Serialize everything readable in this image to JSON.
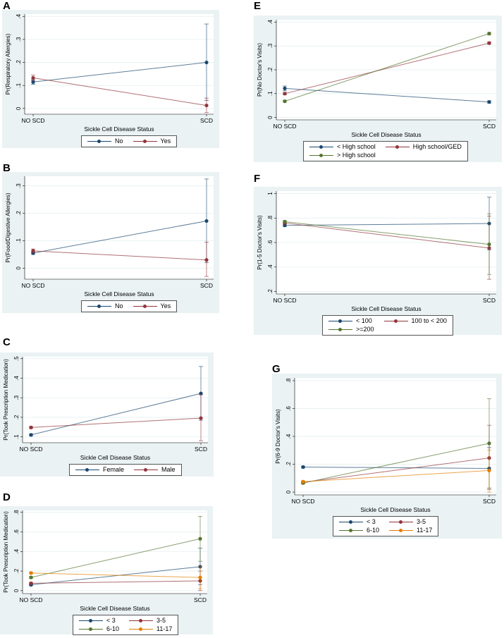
{
  "colors": {
    "blue": "#1a476f",
    "red": "#90353b",
    "green": "#55752f",
    "orange": "#e37e00"
  },
  "chart_data": [
    {
      "id": "A",
      "type": "line",
      "categories": [
        "NO SCD",
        "SCD"
      ],
      "xlabel": "Sickle Cell Disease Status",
      "ylabel": "Pr(Respiratory Allergies)",
      "ylim": [
        -0.025,
        0.41
      ],
      "yticks": [
        0,
        0.1,
        0.2,
        0.3,
        0.4
      ],
      "ytick_labels": [
        "0",
        ".1",
        ".2",
        ".3",
        ".4"
      ],
      "legend_cols": 2,
      "series": [
        {
          "name": "No",
          "color": "blue",
          "values": [
            0.115,
            0.2
          ],
          "ci": [
            [
              0.105,
              0.125
            ],
            [
              0.035,
              0.367
            ]
          ]
        },
        {
          "name": "Yes",
          "color": "red",
          "values": [
            0.133,
            0.013
          ],
          "ci": [
            [
              0.122,
              0.145
            ],
            [
              -0.018,
              0.045
            ]
          ]
        }
      ]
    },
    {
      "id": "B",
      "type": "line",
      "categories": [
        "NO SCD",
        "SCD"
      ],
      "xlabel": "Sickle Cell Disease Status",
      "ylabel": "Pr(Food/Digestive Allergies)",
      "ylim": [
        -0.04,
        0.335
      ],
      "yticks": [
        0,
        0.1,
        0.2,
        0.3
      ],
      "ytick_labels": [
        "0",
        ".1",
        ".2",
        ".3"
      ],
      "legend_cols": 2,
      "series": [
        {
          "name": "No",
          "color": "blue",
          "values": [
            0.055,
            0.172
          ],
          "ci": [
            [
              0.05,
              0.06
            ],
            [
              0.02,
              0.325
            ]
          ]
        },
        {
          "name": "Yes",
          "color": "red",
          "values": [
            0.063,
            0.03
          ],
          "ci": [
            [
              0.057,
              0.07
            ],
            [
              -0.03,
              0.095
            ]
          ]
        }
      ]
    },
    {
      "id": "C",
      "type": "line",
      "categories": [
        "NO SCD",
        "SCD"
      ],
      "xlabel": "Sickle Cell Disease Status",
      "ylabel": "Pr(Took Prescription Medication)",
      "ylim": [
        0.07,
        0.51
      ],
      "yticks": [
        0.1,
        0.2,
        0.3,
        0.4,
        0.5
      ],
      "ytick_labels": [
        ".1",
        ".2",
        ".3",
        ".4",
        ".5"
      ],
      "legend_cols": 2,
      "series": [
        {
          "name": "Female",
          "color": "blue",
          "values": [
            0.11,
            0.322
          ],
          "ci": [
            [
              0.105,
              0.115
            ],
            [
              0.185,
              0.46
            ]
          ]
        },
        {
          "name": "Male",
          "color": "red",
          "values": [
            0.148,
            0.196
          ],
          "ci": [
            [
              0.143,
              0.153
            ],
            [
              0.08,
              0.315
            ]
          ]
        }
      ]
    },
    {
      "id": "D",
      "type": "line",
      "categories": [
        "NO SCD",
        "SCD"
      ],
      "xlabel": "Sickle Cell Disease Status",
      "ylabel": "Pr(Took Prescription Medication)",
      "ylim": [
        -0.03,
        0.82
      ],
      "yticks": [
        0,
        0.2,
        0.4,
        0.6,
        0.8
      ],
      "ytick_labels": [
        "0",
        ".2",
        ".4",
        ".6",
        ".8"
      ],
      "legend_cols": 2,
      "series": [
        {
          "name": "< 3",
          "color": "blue",
          "values": [
            0.06,
            0.245
          ],
          "ci": [
            [
              0.05,
              0.07
            ],
            [
              0.06,
              0.435
            ]
          ]
        },
        {
          "name": "3-5",
          "color": "red",
          "values": [
            0.075,
            0.1
          ],
          "ci": [
            [
              0.065,
              0.085
            ],
            [
              0.0,
              0.2
            ]
          ]
        },
        {
          "name": "6-10",
          "color": "green",
          "values": [
            0.135,
            0.53
          ],
          "ci": [
            [
              0.125,
              0.145
            ],
            [
              0.3,
              0.76
            ]
          ]
        },
        {
          "name": "11-17",
          "color": "orange",
          "values": [
            0.18,
            0.135
          ],
          "ci": [
            [
              0.17,
              0.19
            ],
            [
              0.02,
              0.25
            ]
          ]
        }
      ]
    },
    {
      "id": "E",
      "type": "line",
      "categories": [
        "NO SCD",
        "SCD"
      ],
      "xlabel": "Sickle Cell Disease Status",
      "ylabel": "Pr(No Doctor's Visits)",
      "ylim": [
        -0.01,
        0.41
      ],
      "yticks": [
        0,
        0.1,
        0.2,
        0.3,
        0.4
      ],
      "ytick_labels": [
        "0",
        ".1",
        ".2",
        ".3",
        ".4"
      ],
      "legend_cols": 2,
      "series": [
        {
          "name": "< High school",
          "color": "blue",
          "values": [
            0.122,
            0.065
          ],
          "ci": [
            [
              0.112,
              0.132
            ],
            [
              0.06,
              0.07
            ]
          ]
        },
        {
          "name": "High school/GED",
          "color": "red",
          "values": [
            0.1,
            0.312
          ],
          "ci": [
            [
              0.095,
              0.105
            ],
            [
              0.307,
              0.317
            ]
          ]
        },
        {
          "name": "> High school",
          "color": "green",
          "values": [
            0.068,
            0.352
          ],
          "ci": [
            [
              0.064,
              0.072
            ],
            [
              0.347,
              0.357
            ]
          ]
        }
      ]
    },
    {
      "id": "F",
      "type": "line",
      "categories": [
        "NO SCD",
        "SCD"
      ],
      "xlabel": "Sickle Cell Disease Status",
      "ylabel": "Pr(1-5 Doctor's Visits)",
      "ylim": [
        0.18,
        1.02
      ],
      "yticks": [
        0.2,
        0.4,
        0.6,
        0.8,
        1
      ],
      "ytick_labels": [
        ".2",
        ".4",
        ".6",
        ".8",
        "1"
      ],
      "legend_cols": 2,
      "series": [
        {
          "name": "< 100",
          "color": "blue",
          "values": [
            0.74,
            0.755
          ],
          "ci": [
            [
              0.73,
              0.75
            ],
            [
              0.54,
              0.97
            ]
          ]
        },
        {
          "name": "100 to < 200",
          "color": "red",
          "values": [
            0.76,
            0.555
          ],
          "ci": [
            [
              0.75,
              0.77
            ],
            [
              0.3,
              0.815
            ]
          ]
        },
        {
          "name": ">=200",
          "color": "green",
          "values": [
            0.77,
            0.585
          ],
          "ci": [
            [
              0.76,
              0.78
            ],
            [
              0.34,
              0.835
            ]
          ]
        }
      ]
    },
    {
      "id": "G",
      "type": "line",
      "categories": [
        "NO SCD",
        "SCD"
      ],
      "xlabel": "Sickle Cell Disease Status",
      "ylabel": "Pr(6-9 Doctor's Visits)",
      "ylim": [
        -0.02,
        0.82
      ],
      "yticks": [
        0,
        0.2,
        0.4,
        0.6,
        0.8
      ],
      "ytick_labels": [
        "0",
        ".2",
        ".4",
        ".6",
        ".8"
      ],
      "legend_cols": 2,
      "series": [
        {
          "name": "< 3",
          "color": "blue",
          "values": [
            0.18,
            0.17
          ],
          "ci": [
            [
              0.173,
              0.187
            ],
            [
              0.02,
              0.32
            ]
          ]
        },
        {
          "name": "3-5",
          "color": "red",
          "values": [
            0.07,
            0.245
          ],
          "ci": [
            [
              0.064,
              0.076
            ],
            [
              0.02,
              0.48
            ]
          ]
        },
        {
          "name": "6-10",
          "color": "green",
          "values": [
            0.065,
            0.35
          ],
          "ci": [
            [
              0.059,
              0.071
            ],
            [
              0.03,
              0.67
            ]
          ]
        },
        {
          "name": "11-17",
          "color": "orange",
          "values": [
            0.075,
            0.155
          ],
          "ci": [
            [
              0.069,
              0.081
            ],
            [
              0.0,
              0.3
            ]
          ]
        }
      ]
    }
  ]
}
